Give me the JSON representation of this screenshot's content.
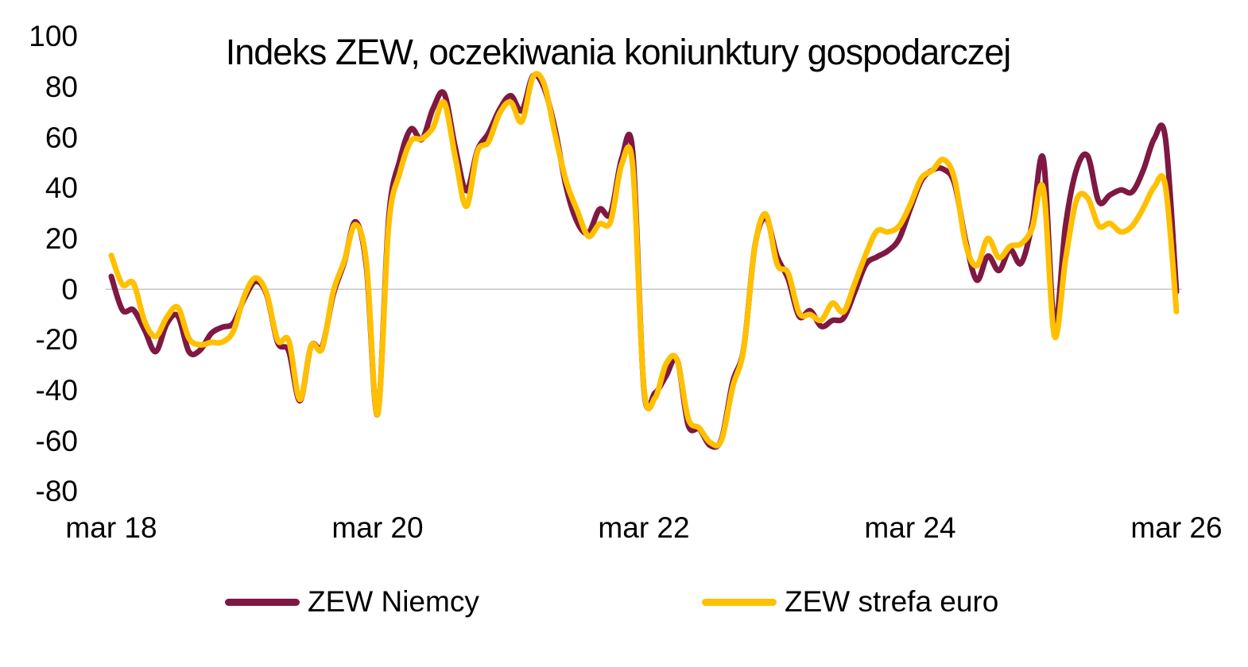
{
  "chart_data": {
    "type": "line",
    "title": "Indeks ZEW, oczekiwania koniunktury gospodarczej",
    "x_axis": {
      "tick_labels": [
        "mar 18",
        "mar 20",
        "mar 22",
        "mar 24",
        "mar 26"
      ],
      "start": "mar 2018",
      "end": "mar 2026",
      "frequency": "monthly"
    },
    "y_axis": {
      "tick_labels": [
        100,
        80,
        60,
        40,
        20,
        0,
        -20,
        -40,
        -60,
        -80
      ],
      "range": [
        -80,
        100
      ]
    },
    "grid": "zero-line-only",
    "legend_position": "bottom",
    "series": [
      {
        "name": "ZEW Niemcy",
        "color": "#7F1843",
        "values": [
          5.1,
          -8.2,
          -8.2,
          -16.1,
          -24.7,
          -13.7,
          -10.6,
          -24.7,
          -24.1,
          -17.5,
          -15.0,
          -13.4,
          -3.6,
          3.1,
          -2.1,
          -21.1,
          -24.5,
          -44.1,
          -22.5,
          -22.8,
          -2.1,
          10.7,
          26.7,
          8.7,
          -49.5,
          28.2,
          51.0,
          63.4,
          59.3,
          71.5,
          77.4,
          56.1,
          39.0,
          55.0,
          61.8,
          71.2,
          76.6,
          70.7,
          84.4,
          79.8,
          63.3,
          40.4,
          26.5,
          22.3,
          31.7,
          29.9,
          51.7,
          54.3,
          -39.3,
          -41.0,
          -34.3,
          -28.0,
          -53.8,
          -55.3,
          -61.9,
          -59.2,
          -36.7,
          -23.3,
          16.9,
          28.1,
          13.0,
          4.1,
          -10.7,
          -8.5,
          -14.7,
          -12.3,
          -11.4,
          -1.1,
          9.8,
          12.8,
          15.2,
          19.9,
          31.7,
          42.9,
          47.1,
          47.5,
          41.8,
          19.2,
          3.6,
          13.1,
          7.4,
          15.7,
          10.3,
          26.0,
          51.6,
          -14.0,
          25.2,
          47.5,
          52.7,
          34.7,
          37.3,
          39.3,
          38.5,
          47.0,
          59.6,
          60.0,
          -1.0
        ]
      },
      {
        "name": "ZEW strefa euro",
        "color": "#FFC000",
        "values": [
          13.4,
          1.9,
          2.4,
          -12.6,
          -18.7,
          -11.1,
          -7.2,
          -19.4,
          -22.0,
          -21.0,
          -20.9,
          -16.6,
          -2.5,
          4.5,
          -1.6,
          -20.2,
          -20.3,
          -43.6,
          -22.4,
          -23.5,
          -1.0,
          11.2,
          25.6,
          10.4,
          -49.5,
          25.2,
          46.0,
          58.6,
          59.6,
          64.0,
          73.9,
          52.3,
          32.8,
          54.4,
          58.3,
          69.6,
          74.0,
          66.3,
          84.0,
          81.3,
          61.2,
          42.7,
          31.1,
          21.0,
          25.9,
          26.8,
          49.4,
          48.6,
          -38.7,
          -43.0,
          -29.5,
          -28.0,
          -51.1,
          -54.9,
          -60.7,
          -59.7,
          -38.7,
          -23.6,
          16.7,
          29.7,
          10.0,
          6.4,
          -9.4,
          -10.0,
          -12.2,
          -5.5,
          -8.9,
          2.3,
          13.8,
          23.0,
          22.7,
          25.0,
          33.5,
          43.9,
          47.0,
          51.3,
          43.7,
          17.9,
          9.3,
          20.1,
          12.5,
          17.0,
          18.0,
          24.2,
          39.8,
          -18.5,
          11.6,
          35.3,
          36.1,
          25.1,
          26.1,
          22.7,
          25.0,
          32.0,
          40.5,
          41.0,
          -8.8
        ]
      }
    ]
  },
  "colors": {
    "background": "#FFFFFF",
    "gridline": "#C6C6C6",
    "text": "#000000"
  }
}
